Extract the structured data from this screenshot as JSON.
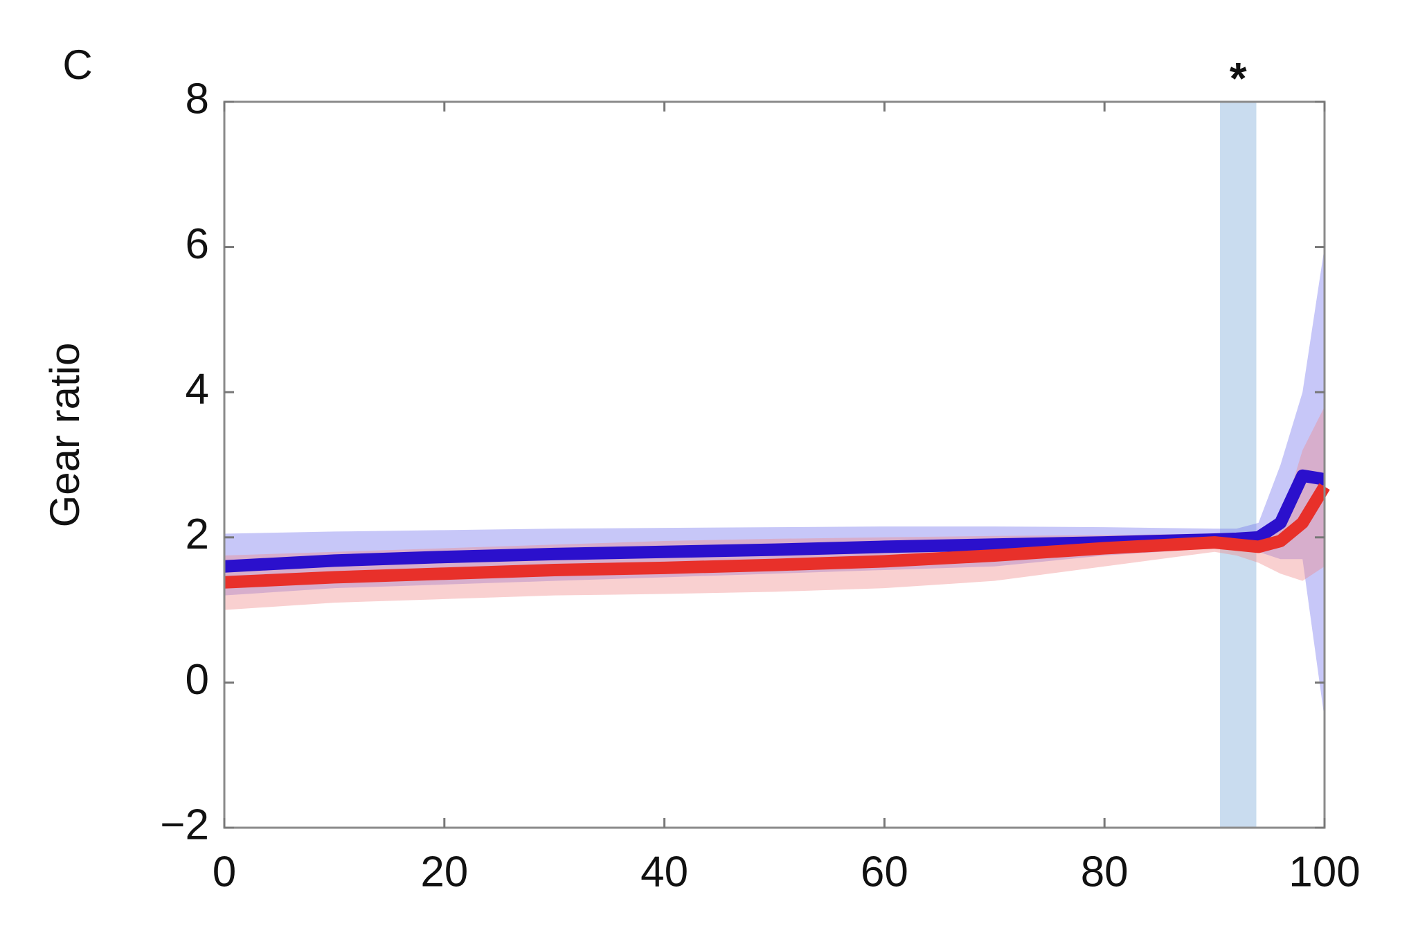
{
  "chart_data": {
    "type": "line",
    "panel_label": "C",
    "ylabel": "Gear ratio",
    "annotation": "*",
    "highlight": [
      90.5,
      93.8
    ],
    "highlight_color": "#c9dcef",
    "xlim": [
      0,
      100
    ],
    "ylim": [
      -2,
      8
    ],
    "xticks": [
      0,
      20,
      40,
      60,
      80,
      100
    ],
    "yticks": [
      {
        "value": -2,
        "label": "−2"
      },
      0,
      2,
      4,
      6,
      8
    ],
    "x": [
      0,
      10,
      20,
      30,
      40,
      50,
      60,
      70,
      80,
      90,
      92,
      94,
      96,
      98,
      100
    ],
    "series": [
      {
        "color": "#2b10cc",
        "band_color": "#7474ee",
        "values": [
          1.6,
          1.68,
          1.73,
          1.77,
          1.8,
          1.83,
          1.87,
          1.9,
          1.93,
          1.97,
          1.98,
          2.0,
          2.2,
          2.85,
          2.8
        ],
        "upper": [
          2.05,
          2.08,
          2.1,
          2.12,
          2.13,
          2.14,
          2.15,
          2.15,
          2.14,
          2.12,
          2.12,
          2.2,
          3.0,
          4.0,
          6.0
        ],
        "lower": [
          1.2,
          1.3,
          1.35,
          1.4,
          1.45,
          1.5,
          1.55,
          1.6,
          1.75,
          1.85,
          1.85,
          1.8,
          1.7,
          1.7,
          -0.5
        ]
      },
      {
        "color": "#e8302a",
        "band_color": "#f08a8a",
        "values": [
          1.38,
          1.45,
          1.5,
          1.55,
          1.58,
          1.62,
          1.67,
          1.75,
          1.85,
          1.93,
          1.9,
          1.87,
          1.95,
          2.2,
          2.7
        ],
        "upper": [
          1.75,
          1.8,
          1.85,
          1.9,
          1.95,
          1.98,
          2.0,
          2.02,
          2.03,
          2.05,
          2.05,
          2.05,
          2.2,
          3.2,
          3.8
        ],
        "lower": [
          1.0,
          1.1,
          1.15,
          1.2,
          1.22,
          1.25,
          1.3,
          1.4,
          1.6,
          1.8,
          1.75,
          1.65,
          1.5,
          1.4,
          1.6
        ]
      }
    ]
  }
}
